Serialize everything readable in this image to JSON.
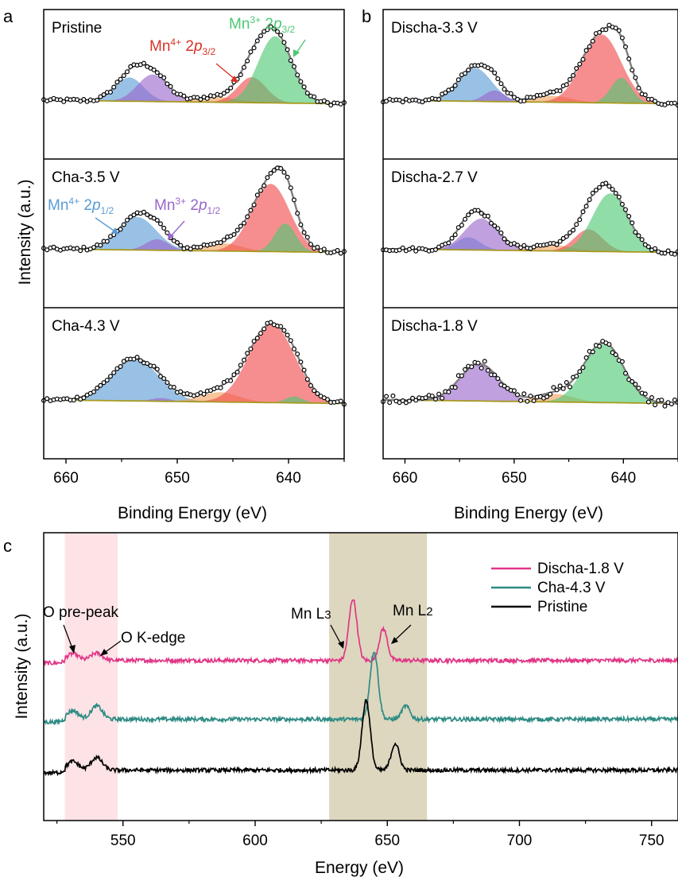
{
  "figure": {
    "panel_labels": {
      "a": "a",
      "b": "b",
      "c": "c"
    },
    "ylabel_xps": "Intensity (a.u.)",
    "xlabel_xps": "Binding Energy (eV)",
    "ylabel_eels": "Intensity (a.u.)",
    "xlabel_eels": "Energy (eV)"
  },
  "annotations": {
    "mn3_2p32": {
      "base": "Mn",
      "sup": "3+",
      "mid": " 2",
      "p": "p",
      "sub": "3/2",
      "color": "#4cc873"
    },
    "mn4_2p32": {
      "base": "Mn",
      "sup": "4+",
      "mid": " 2",
      "p": "p",
      "sub": "3/2",
      "color": "#d63327"
    },
    "mn4_2p12": {
      "base": "Mn",
      "sup": "4+",
      "mid": " 2",
      "p": "p",
      "sub": "1/2",
      "color": "#5b9bd5"
    },
    "mn3_2p12": {
      "base": "Mn",
      "sup": "3+",
      "mid": " 2",
      "p": "p",
      "sub": "1/2",
      "color": "#9966cc"
    },
    "o_prepeak": "O pre-peak",
    "o_kedge": "O K-edge",
    "mn_l3": {
      "base": "Mn L",
      "sub": "3"
    },
    "mn_l2": {
      "base": "Mn L",
      "sub": "2"
    }
  },
  "colors": {
    "mn4_2p12": "#5b9bd5",
    "mn3_2p12": "#9966cc",
    "satellite": "#f0a25e",
    "mn4_2p32": "#f0484a",
    "mn3_2p32": "#4cc873",
    "background": "#a89a20",
    "envelope": "#7f7f7f",
    "discha": "#e03686",
    "cha43": "#2e8b84",
    "pristine": "#000000",
    "o_band": "#fde0e3",
    "mn_band": "#d9d3b8"
  },
  "chart_data": [
    {
      "type": "area",
      "panel": "a",
      "xlabel": "Binding Energy (eV)",
      "ylabel": "Intensity (a.u.)",
      "xlim": [
        662,
        635
      ],
      "xticks": [
        660,
        650,
        640
      ],
      "subplots": [
        {
          "label": "Pristine",
          "peaks": [
            {
              "component": "mn4_2p12",
              "center": 654.3,
              "height": 0.3,
              "fwhm": 3.0
            },
            {
              "component": "mn3_2p12",
              "center": 652.2,
              "height": 0.34,
              "fwhm": 3.2
            },
            {
              "component": "satellite",
              "center": 646.5,
              "height": 0.07,
              "fwhm": 4.0
            },
            {
              "component": "mn4_2p32",
              "center": 643.3,
              "height": 0.32,
              "fwhm": 3.0
            },
            {
              "component": "mn3_2p32",
              "center": 641.2,
              "height": 0.84,
              "fwhm": 3.6
            }
          ]
        },
        {
          "label": "Cha-3.5 V",
          "peaks": [
            {
              "component": "mn4_2p12",
              "center": 653.6,
              "height": 0.42,
              "fwhm": 4.0
            },
            {
              "component": "mn3_2p12",
              "center": 651.8,
              "height": 0.14,
              "fwhm": 2.4
            },
            {
              "component": "satellite",
              "center": 646.0,
              "height": 0.1,
              "fwhm": 4.0
            },
            {
              "component": "mn4_2p32",
              "center": 641.6,
              "height": 0.86,
              "fwhm": 4.0
            },
            {
              "component": "mn3_2p32",
              "center": 640.3,
              "height": 0.36,
              "fwhm": 2.2
            }
          ]
        },
        {
          "label": "Cha-4.3 V",
          "peaks": [
            {
              "component": "mn4_2p12",
              "center": 653.8,
              "height": 0.52,
              "fwhm": 5.0
            },
            {
              "component": "mn3_2p12",
              "center": 651.5,
              "height": 0.04,
              "fwhm": 2.0
            },
            {
              "component": "satellite",
              "center": 646.2,
              "height": 0.12,
              "fwhm": 4.0
            },
            {
              "component": "mn4_2p32",
              "center": 641.5,
              "height": 0.97,
              "fwhm": 4.8
            },
            {
              "component": "mn3_2p32",
              "center": 639.5,
              "height": 0.08,
              "fwhm": 1.8
            }
          ]
        }
      ]
    },
    {
      "type": "area",
      "panel": "b",
      "xlabel": "Binding Energy (eV)",
      "xlim": [
        662,
        635
      ],
      "xticks": [
        660,
        650,
        640
      ],
      "subplots": [
        {
          "label": "Discha-3.3 V",
          "peaks": [
            {
              "component": "mn4_2p12",
              "center": 653.6,
              "height": 0.42,
              "fwhm": 3.6
            },
            {
              "component": "mn3_2p12",
              "center": 651.8,
              "height": 0.14,
              "fwhm": 2.2
            },
            {
              "component": "satellite",
              "center": 646.5,
              "height": 0.08,
              "fwhm": 4.0
            },
            {
              "component": "mn4_2p32",
              "center": 642.0,
              "height": 0.86,
              "fwhm": 4.2
            },
            {
              "component": "mn3_2p32",
              "center": 640.2,
              "height": 0.32,
              "fwhm": 2.2
            }
          ]
        },
        {
          "label": "Discha-2.7 V",
          "peaks": [
            {
              "component": "mn4_2p12",
              "center": 654.2,
              "height": 0.16,
              "fwhm": 2.6
            },
            {
              "component": "mn3_2p12",
              "center": 653.0,
              "height": 0.4,
              "fwhm": 3.6
            },
            {
              "component": "satellite",
              "center": 646.6,
              "height": 0.08,
              "fwhm": 4.0
            },
            {
              "component": "mn4_2p32",
              "center": 643.2,
              "height": 0.28,
              "fwhm": 3.0
            },
            {
              "component": "mn3_2p32",
              "center": 641.2,
              "height": 0.74,
              "fwhm": 3.8
            }
          ]
        },
        {
          "label": "Discha-1.8 V",
          "peaks": [
            {
              "component": "mn3_2p12",
              "center": 653.2,
              "height": 0.46,
              "fwhm": 4.2
            },
            {
              "component": "satellite",
              "center": 646.3,
              "height": 0.1,
              "fwhm": 4.0
            },
            {
              "component": "mn3_2p32",
              "center": 641.8,
              "height": 0.74,
              "fwhm": 4.2
            }
          ]
        }
      ]
    },
    {
      "type": "line",
      "panel": "c",
      "xlabel": "Energy (eV)",
      "ylabel": "Intensity (a.u.)",
      "xlim": [
        520,
        760
      ],
      "xticks": [
        550,
        600,
        650,
        700,
        750
      ],
      "shaded_regions": [
        {
          "from": 528,
          "to": 548
        },
        {
          "from": 628,
          "to": 665
        }
      ],
      "series": [
        {
          "name": "Discha-1.8 V",
          "peaks": [
            {
              "center": 531,
              "height": 0.2
            },
            {
              "center": 540,
              "height": 0.22
            },
            {
              "center": 637,
              "height": 1.85
            },
            {
              "center": 648.5,
              "height": 0.95
            }
          ]
        },
        {
          "name": "Cha-4.3 V",
          "peaks": [
            {
              "center": 531,
              "height": 0.26
            },
            {
              "center": 540,
              "height": 0.4
            },
            {
              "center": 645,
              "height": 2.05
            },
            {
              "center": 657,
              "height": 0.4
            }
          ]
        },
        {
          "name": "Pristine",
          "peaks": [
            {
              "center": 531,
              "height": 0.26
            },
            {
              "center": 540,
              "height": 0.38
            },
            {
              "center": 642,
              "height": 2.1
            },
            {
              "center": 653,
              "height": 0.8
            }
          ]
        }
      ]
    }
  ]
}
